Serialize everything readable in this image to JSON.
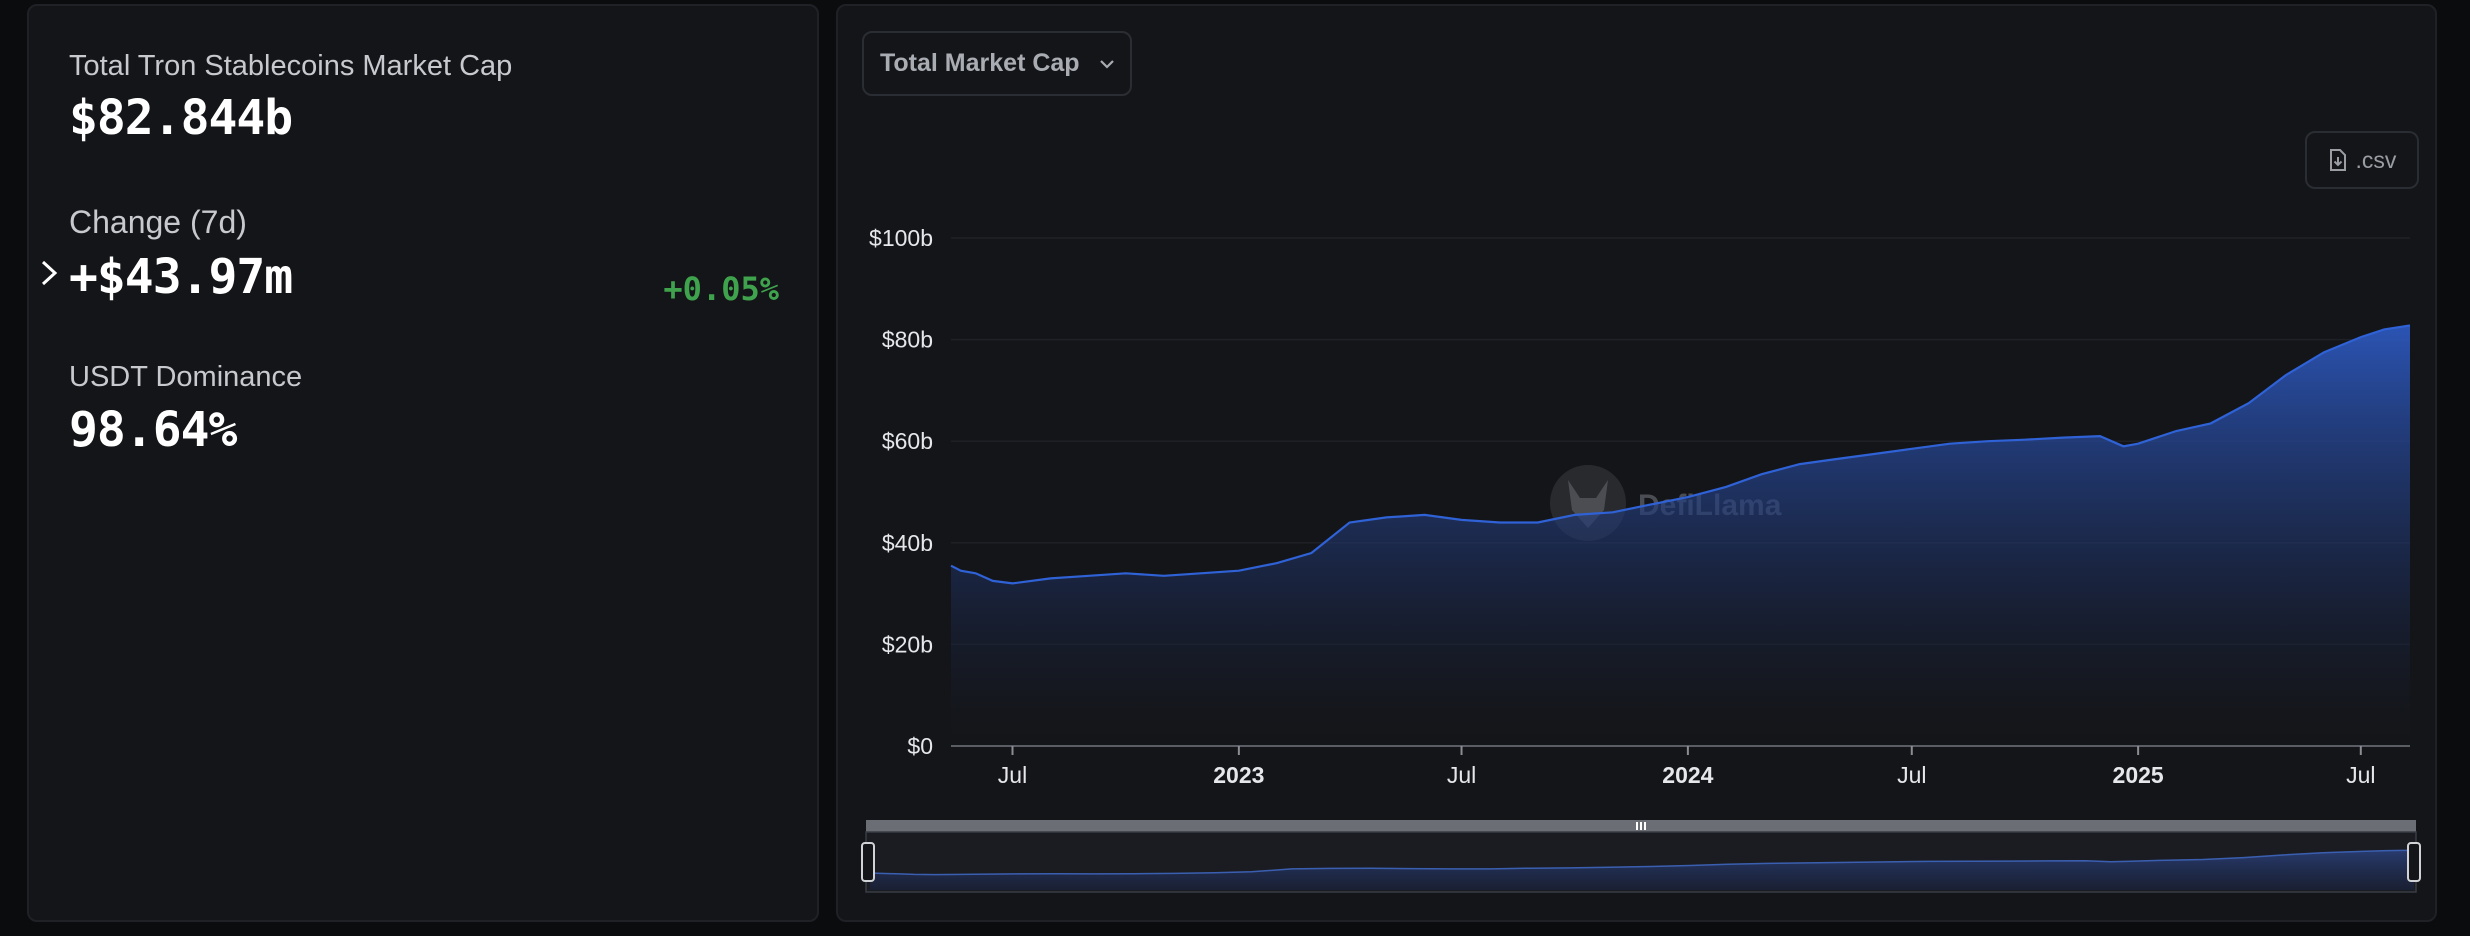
{
  "stats": {
    "total_label": "Total Tron Stablecoins Market Cap",
    "total_value": "$82.844b",
    "change_label": "Change (7d)",
    "change_value": "+$43.97m",
    "change_pct": "+0.05%",
    "dominance_label": "USDT Dominance",
    "dominance_value": "98.64%"
  },
  "controls": {
    "dropdown_label": "Total Market Cap",
    "csv_label": ".csv"
  },
  "watermark": "DefiLlama",
  "colors": {
    "line": "#2f62d6",
    "positive": "#3fa34d",
    "background": "#141518"
  },
  "chart_data": {
    "type": "area",
    "title": "",
    "xlabel": "",
    "ylabel": "",
    "x_range": [
      "2022-05-12",
      "2025-08-10"
    ],
    "ylim": [
      0,
      100
    ],
    "y_unit": "b",
    "y_ticks": [
      "$0",
      "$20b",
      "$40b",
      "$60b",
      "$80b",
      "$100b"
    ],
    "x_ticks": [
      {
        "date": "2022-07-01",
        "label": "Jul",
        "bold": false
      },
      {
        "date": "2023-01-01",
        "label": "2023",
        "bold": true
      },
      {
        "date": "2023-07-01",
        "label": "Jul",
        "bold": false
      },
      {
        "date": "2024-01-01",
        "label": "2024",
        "bold": true
      },
      {
        "date": "2024-07-01",
        "label": "Jul",
        "bold": false
      },
      {
        "date": "2025-01-01",
        "label": "2025",
        "bold": true
      },
      {
        "date": "2025-07-01",
        "label": "Jul",
        "bold": false
      }
    ],
    "series": [
      {
        "x": [
          "2022-05-12",
          "2022-05-20",
          "2022-06-01",
          "2022-06-15",
          "2022-07-01",
          "2022-08-01",
          "2022-09-01",
          "2022-10-01",
          "2022-11-01",
          "2022-12-01",
          "2023-01-01",
          "2023-02-01",
          "2023-03-01",
          "2023-04-01",
          "2023-05-01",
          "2023-06-01",
          "2023-07-01",
          "2023-08-01",
          "2023-09-01",
          "2023-10-01",
          "2023-11-01",
          "2023-12-01",
          "2024-01-01",
          "2024-02-01",
          "2024-03-01",
          "2024-04-01",
          "2024-05-01",
          "2024-06-01",
          "2024-07-01",
          "2024-08-01",
          "2024-09-01",
          "2024-10-01",
          "2024-11-01",
          "2024-12-01",
          "2024-12-20",
          "2025-01-01",
          "2025-02-01",
          "2025-03-01",
          "2025-04-01",
          "2025-05-01",
          "2025-06-01",
          "2025-07-01",
          "2025-07-20",
          "2025-08-10"
        ],
        "values": [
          35.5,
          34.5,
          34.0,
          32.5,
          32.0,
          33.0,
          33.5,
          34.0,
          33.5,
          34.0,
          34.5,
          36.0,
          38.0,
          44.0,
          45.0,
          45.5,
          44.5,
          44.0,
          44.0,
          45.5,
          46.0,
          47.5,
          49.0,
          51.0,
          53.5,
          55.5,
          56.5,
          57.5,
          58.5,
          59.5,
          60.0,
          60.3,
          60.7,
          61.0,
          59.0,
          59.5,
          62.0,
          63.5,
          67.5,
          73.0,
          77.5,
          80.5,
          82.0,
          82.8
        ]
      }
    ]
  }
}
